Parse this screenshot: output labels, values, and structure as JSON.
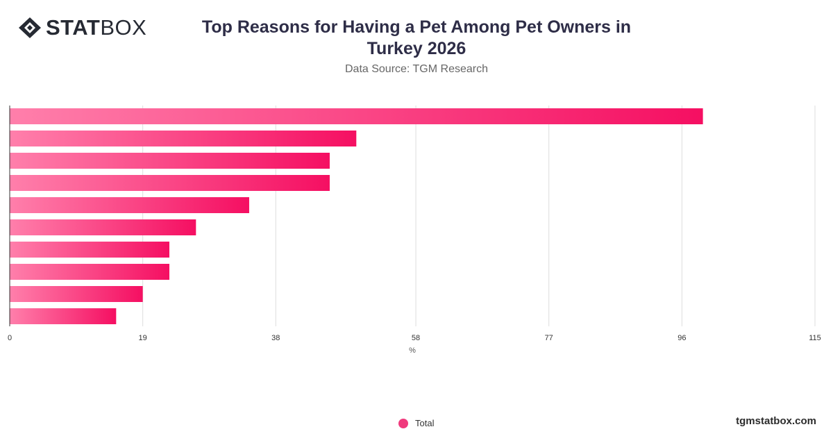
{
  "brand": {
    "logo_bold": "STAT",
    "logo_light": "BOX"
  },
  "header": {
    "title": "Top Reasons for Having a Pet Among Pet Owners in Turkey 2026",
    "subtitle": "Data Source: TGM Research"
  },
  "chart_data": {
    "type": "bar",
    "orientation": "horizontal",
    "title": "Top Reasons for Having a Pet Among Pet Owners in Turkey 2026",
    "subtitle": "Data Source: TGM Research",
    "xlabel": "%",
    "ylabel": "",
    "xlim": [
      0,
      115
    ],
    "x_ticks": [
      0,
      19,
      38,
      58,
      77,
      96,
      115
    ],
    "grid": true,
    "legend_position": "bottom",
    "series": [
      {
        "name": "Total",
        "values": [
          99,
          49.5,
          45.7,
          45.7,
          34.2,
          26.6,
          22.8,
          22.8,
          19,
          15.2
        ]
      }
    ],
    "colors": {
      "bar_start": "#ff7fab",
      "bar_end": "#f50f62",
      "grid": "#dddddd",
      "axis": "#333333"
    }
  },
  "legend": {
    "label": "Total"
  },
  "footer": {
    "text": "tgmstatbox.com"
  }
}
